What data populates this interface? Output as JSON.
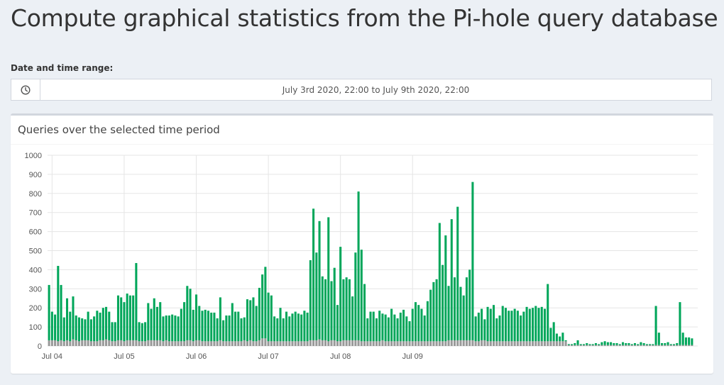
{
  "page": {
    "title": "Compute graphical statistics from the Pi-hole query database"
  },
  "date_range": {
    "label": "Date and time range:",
    "value": "July 3rd 2020, 22:00 to July 9th 2020, 22:00",
    "icon": "clock-icon"
  },
  "chart_box": {
    "title": "Queries over the selected time period"
  },
  "colors": {
    "permitted": "#00a65a",
    "blocked": "#999999",
    "grid": "#e5e5e5"
  },
  "chart_data": {
    "type": "bar",
    "stacked": true,
    "ylim": [
      0,
      1000
    ],
    "yticks": [
      0,
      100,
      200,
      300,
      400,
      500,
      600,
      700,
      800,
      900,
      1000
    ],
    "xlabels": [
      "Jul 04",
      "Jul 05",
      "Jul 06",
      "Jul 07",
      "Jul 08",
      "Jul 09"
    ],
    "xlabel_positions": [
      1.5,
      25.5,
      49.5,
      73.5,
      97.5,
      121.5
    ],
    "grid": true,
    "series": [
      {
        "key": "permitted",
        "values": [
          290,
          150,
          135,
          395,
          290,
          125,
          220,
          155,
          225,
          130,
          125,
          115,
          110,
          150,
          115,
          130,
          160,
          145,
          170,
          170,
          150,
          100,
          100,
          235,
          225,
          205,
          245,
          235,
          235,
          405,
          100,
          95,
          100,
          195,
          165,
          220,
          175,
          200,
          130,
          130,
          135,
          140,
          135,
          130,
          170,
          205,
          285,
          270,
          165,
          240,
          180,
          160,
          165,
          160,
          150,
          150,
          120,
          225,
          110,
          135,
          135,
          200,
          155,
          155,
          120,
          120,
          220,
          210,
          230,
          185,
          275,
          335,
          375,
          255,
          240,
          130,
          120,
          175,
          120,
          155,
          130,
          145,
          155,
          145,
          140,
          160,
          150,
          420,
          690,
          460,
          620,
          335,
          320,
          650,
          310,
          380,
          190,
          495,
          320,
          330,
          320,
          230,
          460,
          780,
          480,
          300,
          120,
          155,
          155,
          120,
          160,
          140,
          140,
          125,
          170,
          140,
          120,
          150,
          165,
          130,
          105,
          170,
          205,
          190,
          170,
          135,
          210,
          270,
          310,
          325,
          620,
          400,
          555,
          285,
          635,
          330,
          700,
          280,
          235,
          330,
          370,
          830,
          130,
          150,
          165,
          110,
          180,
          170,
          190,
          120,
          135,
          185,
          175,
          160,
          160,
          170,
          160,
          135,
          155,
          180,
          170,
          175,
          185,
          175,
          180,
          170,
          300,
          70,
          100,
          40,
          25,
          45,
          5,
          5,
          5,
          10,
          25,
          5,
          5,
          10,
          5,
          5,
          10,
          5,
          15,
          20,
          15,
          15,
          10,
          10,
          5,
          15,
          10,
          10,
          5,
          10,
          5,
          15,
          10,
          5,
          5,
          5,
          205,
          65,
          10,
          10,
          15,
          5,
          5,
          10,
          225,
          65,
          40,
          40,
          35
        ],
        "color_key": "permitted"
      },
      {
        "key": "blocked",
        "values": [
          30,
          30,
          30,
          25,
          30,
          25,
          30,
          25,
          35,
          30,
          25,
          30,
          30,
          30,
          25,
          25,
          25,
          30,
          30,
          35,
          30,
          25,
          25,
          30,
          30,
          25,
          30,
          30,
          30,
          30,
          25,
          25,
          25,
          30,
          30,
          30,
          30,
          30,
          25,
          30,
          25,
          25,
          25,
          25,
          25,
          25,
          30,
          30,
          25,
          30,
          30,
          25,
          25,
          25,
          25,
          25,
          25,
          30,
          25,
          25,
          25,
          25,
          25,
          25,
          25,
          30,
          25,
          30,
          25,
          25,
          30,
          40,
          40,
          25,
          25,
          25,
          25,
          25,
          25,
          25,
          25,
          25,
          25,
          25,
          25,
          25,
          25,
          30,
          30,
          30,
          35,
          30,
          30,
          25,
          30,
          30,
          25,
          25,
          30,
          30,
          30,
          30,
          30,
          30,
          25,
          25,
          25,
          25,
          25,
          25,
          25,
          30,
          25,
          25,
          25,
          25,
          25,
          25,
          25,
          25,
          25,
          25,
          25,
          25,
          25,
          25,
          25,
          25,
          25,
          25,
          25,
          25,
          25,
          30,
          30,
          30,
          30,
          30,
          30,
          30,
          30,
          30,
          25,
          25,
          30,
          30,
          25,
          25,
          25,
          25,
          25,
          25,
          25,
          25,
          25,
          25,
          25,
          25,
          25,
          25,
          25,
          25,
          25,
          25,
          25,
          25,
          25,
          25,
          25,
          25,
          25,
          25,
          25,
          5,
          5,
          5,
          5,
          5,
          5,
          5,
          5,
          5,
          5,
          5,
          5,
          5,
          5,
          5,
          5,
          5,
          5,
          5,
          5,
          5,
          5,
          5,
          5,
          5,
          5,
          5,
          5,
          5,
          5,
          5,
          5,
          5,
          5,
          5,
          5,
          5,
          5,
          5,
          5,
          5,
          5,
          5,
          5,
          5,
          5,
          5,
          5,
          5
        ],
        "color_key": "blocked"
      }
    ]
  }
}
